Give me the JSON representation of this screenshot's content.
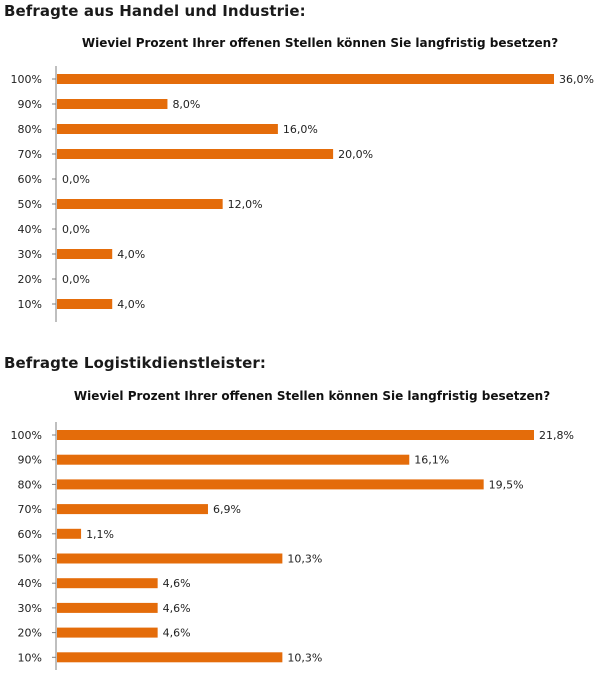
{
  "sections": [
    {
      "heading": "Befragte aus Handel und Industrie:",
      "chart_title": "Wieviel Prozent Ihrer offenen Stellen können Sie langfristig besetzen?"
    },
    {
      "heading": "Befragte Logistikdienstleister:",
      "chart_title": "Wieviel Prozent Ihrer offenen Stellen können Sie langfristig besetzen?"
    }
  ],
  "bar_color": "#E46C0A",
  "chart_data": [
    {
      "type": "bar",
      "orientation": "horizontal",
      "title": "Wieviel Prozent Ihrer offenen Stellen können Sie langfristig besetzen?",
      "categories": [
        "100%",
        "90%",
        "80%",
        "70%",
        "60%",
        "50%",
        "40%",
        "30%",
        "20%",
        "10%"
      ],
      "values": [
        36.0,
        8.0,
        16.0,
        20.0,
        0.0,
        12.0,
        0.0,
        4.0,
        0.0,
        4.0
      ],
      "value_labels": [
        "36,0%",
        "8,0%",
        "16,0%",
        "20,0%",
        "0,0%",
        "12,0%",
        "0,0%",
        "4,0%",
        "0,0%",
        "4,0%"
      ],
      "xlim": [
        0,
        36
      ],
      "grid": false,
      "legend": false
    },
    {
      "type": "bar",
      "orientation": "horizontal",
      "title": "Wieviel Prozent Ihrer offenen Stellen können Sie langfristig besetzen?",
      "categories": [
        "100%",
        "90%",
        "80%",
        "70%",
        "60%",
        "50%",
        "40%",
        "30%",
        "20%",
        "10%"
      ],
      "values": [
        21.8,
        16.1,
        19.5,
        6.9,
        1.1,
        10.3,
        4.6,
        4.6,
        4.6,
        10.3
      ],
      "value_labels": [
        "21,8%",
        "16,1%",
        "19,5%",
        "6,9%",
        "1,1%",
        "10,3%",
        "4,6%",
        "4,6%",
        "4,6%",
        "10,3%"
      ],
      "xlim": [
        0,
        21.8
      ],
      "grid": false,
      "legend": false
    }
  ]
}
